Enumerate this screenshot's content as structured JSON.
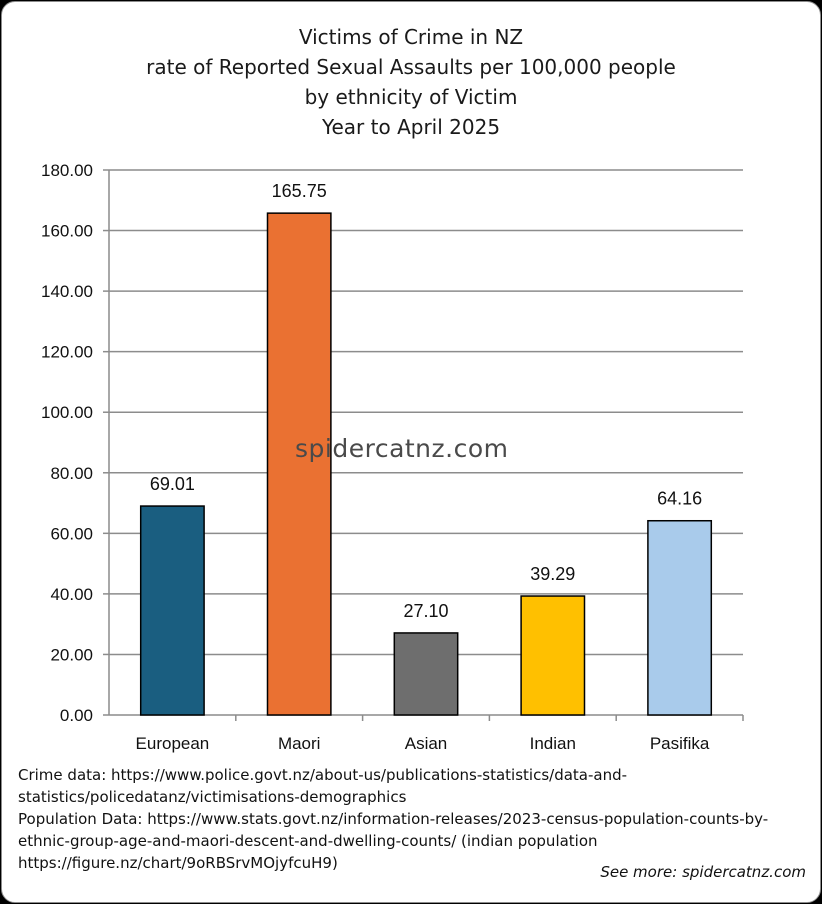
{
  "title_lines": [
    "Victims of Crime in NZ",
    "rate of Reported Sexual Assaults per 100,000 people",
    "by ethnicity of Victim",
    "Year to April 2025"
  ],
  "watermark": "spidercatnz.com",
  "sources": {
    "crime": "Crime data: https://www.police.govt.nz/about-us/publications-statistics/data-and-statistics/policedatanz/victimisations-demographics",
    "population": "Population Data: https://www.stats.govt.nz/information-releases/2023-census-population-counts-by-ethnic-group-age-and-maori-descent-and-dwelling-counts/ (indian population https://figure.nz/chart/9oRBSrvMOjyfcuH9)"
  },
  "see_more": "See more: spidercatnz.com",
  "chart_data": {
    "type": "bar",
    "title": "Victims of Crime in NZ rate of Reported Sexual Assaults per 100,000 people by ethnicity of Victim Year to April 2025",
    "categories": [
      "European",
      "Maori",
      "Asian",
      "Indian",
      "Pasifika"
    ],
    "values": [
      69.01,
      165.75,
      27.1,
      39.29,
      64.16
    ],
    "value_labels": [
      "69.01",
      "165.75",
      "27.10",
      "39.29",
      "64.16"
    ],
    "colors": [
      "#1a5e80",
      "#ea7132",
      "#6e6e6e",
      "#ffc000",
      "#a9cbeb"
    ],
    "ylim": [
      0,
      180
    ],
    "ytick_labels": [
      "0.00",
      "20.00",
      "40.00",
      "60.00",
      "80.00",
      "100.00",
      "120.00",
      "140.00",
      "160.00",
      "180.00"
    ],
    "grid": true,
    "legend": "none"
  }
}
